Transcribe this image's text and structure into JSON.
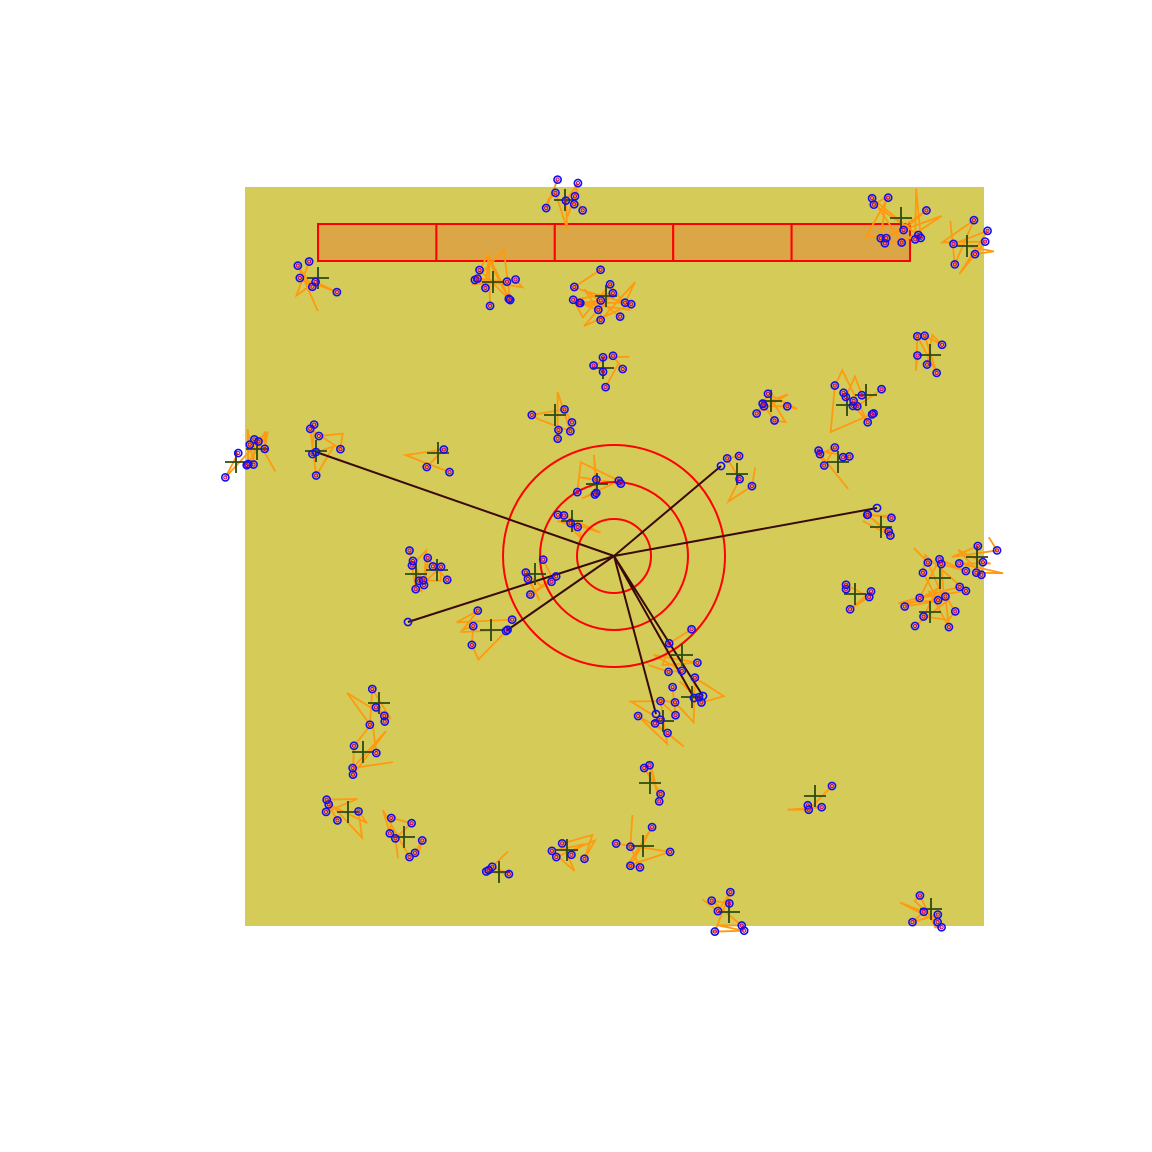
{
  "colors": {
    "background": "#ffffff",
    "panel": "#d4cb58",
    "bar_fill": "#dba646",
    "bar_stroke": "#ff0000",
    "ring": "#ff0000",
    "ray": "#3a0a0a",
    "path": "#ff9a10",
    "point_outer": "#1010ee",
    "point_inner": "#c00070",
    "cross": "#2e4a0e"
  },
  "bar_segments": 5,
  "ring_count": 3,
  "ray_count": 8,
  "cluster_count": 40,
  "icons": {
    "cross": "plus-cross-marker",
    "point": "open-circle-marker"
  }
}
